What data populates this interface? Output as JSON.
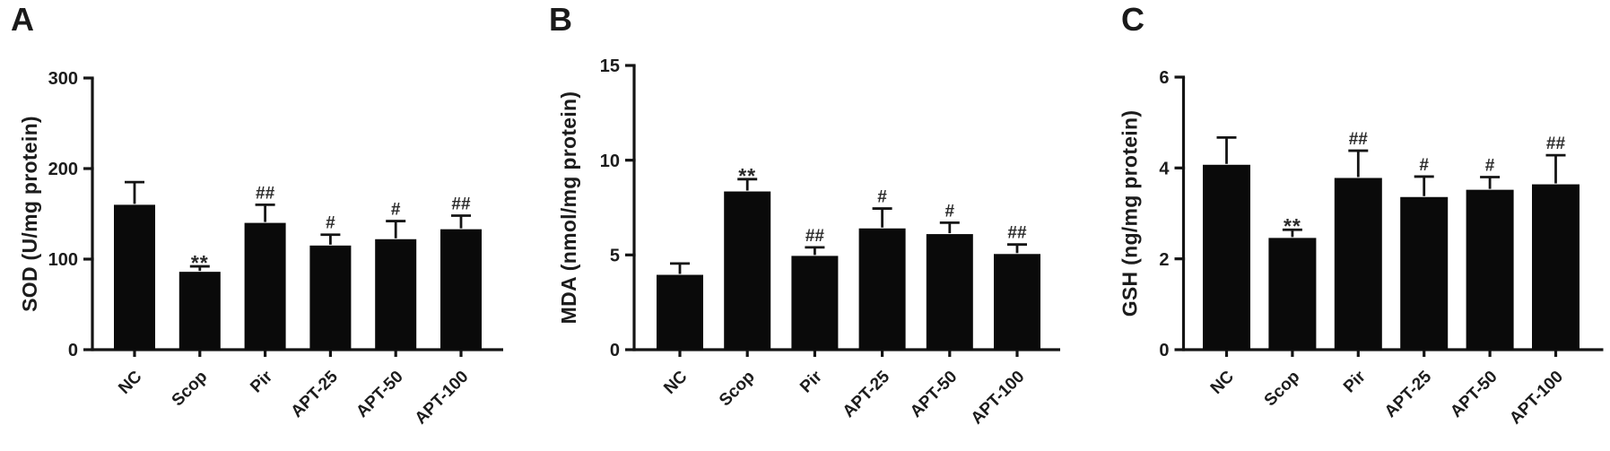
{
  "figure_title": "",
  "groups": [
    "NC",
    "Scop",
    "Pir",
    "APT-25",
    "APT-50",
    "APT-100"
  ],
  "significance_legend": {
    "vs_control": "**",
    "vs_model_p05": "#",
    "vs_model_p01": "##"
  },
  "colors": {
    "bar": "#0a0a0a",
    "axis": "#141414",
    "text": "#1c1c1c",
    "background": "#ffffff"
  },
  "chart_data": [
    {
      "type": "bar",
      "panel_letter": "A",
      "ylabel": "SOD (U/mg protein)",
      "xlabel": "",
      "categories": [
        "NC",
        "Scop",
        "Pir",
        "APT-25",
        "APT-50",
        "APT-100"
      ],
      "values": [
        160,
        86,
        140,
        115,
        122,
        133
      ],
      "errors": [
        25,
        6,
        20,
        12,
        20,
        15
      ],
      "annotations": [
        "",
        "**",
        "##",
        "#",
        "#",
        "##"
      ],
      "ylim": [
        0,
        300
      ],
      "yticks": [
        0,
        100,
        200,
        300
      ],
      "grid": false,
      "legend": "none",
      "bar_color": "#0a0a0a",
      "error_bars": "upper"
    },
    {
      "type": "bar",
      "panel_letter": "B",
      "ylabel": "MDA (nmol/mg protein)",
      "xlabel": "",
      "categories": [
        "NC",
        "Scop",
        "Pir",
        "APT-25",
        "APT-50",
        "APT-100"
      ],
      "values": [
        3.95,
        8.35,
        4.95,
        6.4,
        6.1,
        5.05
      ],
      "errors": [
        0.6,
        0.65,
        0.45,
        1.05,
        0.6,
        0.5
      ],
      "annotations": [
        "",
        "**",
        "##",
        "#",
        "#",
        "##"
      ],
      "ylim": [
        0,
        15
      ],
      "yticks": [
        0,
        5,
        10,
        15
      ],
      "grid": false,
      "legend": "none",
      "bar_color": "#0a0a0a",
      "error_bars": "upper"
    },
    {
      "type": "bar",
      "panel_letter": "C",
      "ylabel": "GSH (ng/mg protein)",
      "xlabel": "",
      "categories": [
        "NC",
        "Scop",
        "Pir",
        "APT-25",
        "APT-50",
        "APT-100"
      ],
      "values": [
        4.07,
        2.46,
        3.78,
        3.36,
        3.52,
        3.64
      ],
      "errors": [
        0.6,
        0.18,
        0.6,
        0.45,
        0.28,
        0.64
      ],
      "annotations": [
        "",
        "**",
        "##",
        "#",
        "#",
        "##"
      ],
      "ylim": [
        0,
        6
      ],
      "yticks": [
        0,
        2,
        4,
        6
      ],
      "grid": false,
      "legend": "none",
      "bar_color": "#0a0a0a",
      "error_bars": "upper"
    }
  ]
}
